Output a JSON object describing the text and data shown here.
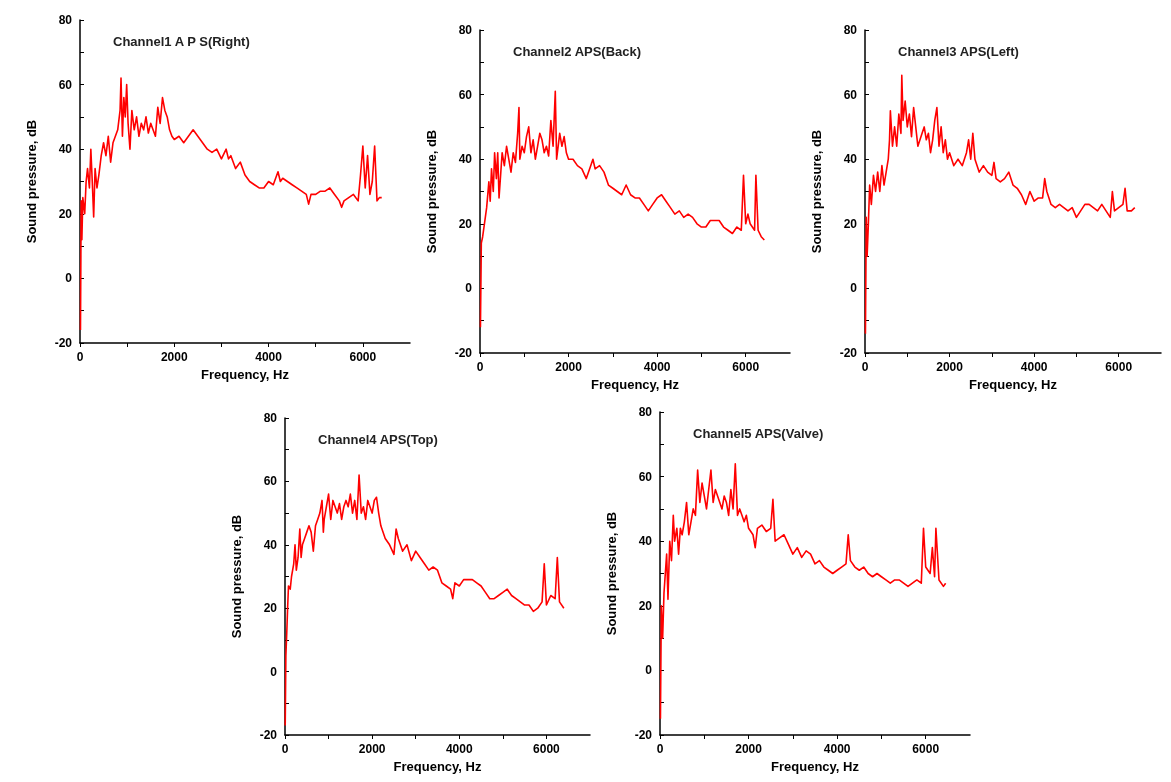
{
  "chart_data": [
    {
      "type": "line",
      "title": "Channel1 A P S(Right)",
      "xlabel": "Frequency, Hz",
      "ylabel": "Sound pressure, dB",
      "color": "#ff0000",
      "grid": false,
      "marker": "none",
      "line_style": "solid",
      "xlim": [
        0,
        7000
      ],
      "xticks": [
        0,
        {
          "value": 1000,
          "label": null
        },
        2000,
        {
          "value": 3000,
          "label": null
        },
        4000,
        {
          "value": 5000,
          "label": null
        },
        6000
      ],
      "ylim": [
        -20,
        80
      ],
      "yticks": [
        -20,
        {
          "value": -10,
          "label": null
        },
        0,
        {
          "value": 10,
          "label": null
        },
        20,
        {
          "value": 30,
          "label": null
        },
        40,
        {
          "value": 50,
          "label": null
        },
        60,
        {
          "value": 70,
          "label": null
        },
        80
      ],
      "x": [
        10,
        25,
        40,
        60,
        100,
        130,
        160,
        200,
        230,
        260,
        290,
        320,
        360,
        400,
        450,
        500,
        550,
        600,
        650,
        700,
        750,
        800,
        850,
        870,
        900,
        930,
        960,
        990,
        1020,
        1060,
        1100,
        1150,
        1200,
        1250,
        1300,
        1350,
        1400,
        1450,
        1500,
        1550,
        1600,
        1650,
        1700,
        1750,
        1800,
        1850,
        1900,
        1950,
        2000,
        2100,
        2200,
        2300,
        2400,
        2500,
        2600,
        2700,
        2800,
        2900,
        3000,
        3100,
        3150,
        3200,
        3300,
        3400,
        3500,
        3600,
        3700,
        3800,
        3900,
        4000,
        4100,
        4200,
        4250,
        4300,
        4400,
        4500,
        4600,
        4700,
        4800,
        4850,
        4900,
        5000,
        5100,
        5200,
        5300,
        5400,
        5500,
        5550,
        5600,
        5700,
        5800,
        5900,
        5950,
        6000,
        6050,
        6100,
        6150,
        6200,
        6250,
        6300,
        6350,
        6400
      ],
      "values": [
        -16,
        24,
        12,
        25,
        20,
        30,
        34,
        28,
        40,
        30,
        19,
        34,
        28,
        32,
        38,
        42,
        38,
        44,
        36,
        42,
        44,
        46,
        52,
        62,
        44,
        56,
        50,
        60,
        48,
        40,
        52,
        46,
        50,
        44,
        48,
        46,
        50,
        45,
        48,
        46,
        44,
        53,
        48,
        56,
        52,
        50,
        46,
        44,
        43,
        44,
        42,
        44,
        46,
        44,
        42,
        40,
        39,
        40,
        37,
        40,
        37,
        38,
        34,
        36,
        32,
        30,
        29,
        28,
        28,
        30,
        29,
        33,
        30,
        31,
        30,
        29,
        28,
        27,
        26,
        23,
        26,
        26,
        27,
        27,
        28,
        26,
        24,
        22,
        24,
        25,
        26,
        24,
        32,
        41,
        28,
        38,
        26,
        30,
        41,
        24,
        25,
        25
      ]
    },
    {
      "type": "line",
      "title": "Channel2 APS(Back)",
      "xlabel": "Frequency, Hz",
      "ylabel": "Sound pressure, dB",
      "color": "#ff0000",
      "grid": false,
      "marker": "none",
      "line_style": "solid",
      "xlim": [
        0,
        7000
      ],
      "xticks": [
        0,
        {
          "value": 1000,
          "label": null
        },
        2000,
        {
          "value": 3000,
          "label": null
        },
        4000,
        {
          "value": 5000,
          "label": null
        },
        6000
      ],
      "ylim": [
        -20,
        80
      ],
      "yticks": [
        -20,
        {
          "value": -10,
          "label": null
        },
        0,
        {
          "value": 10,
          "label": null
        },
        20,
        {
          "value": 30,
          "label": null
        },
        40,
        {
          "value": 50,
          "label": null
        },
        60,
        {
          "value": 70,
          "label": null
        },
        80
      ],
      "x": [
        10,
        30,
        60,
        100,
        150,
        200,
        230,
        260,
        300,
        330,
        370,
        400,
        430,
        470,
        500,
        550,
        600,
        650,
        700,
        750,
        800,
        850,
        880,
        900,
        950,
        1000,
        1050,
        1100,
        1150,
        1200,
        1250,
        1300,
        1350,
        1400,
        1450,
        1500,
        1550,
        1600,
        1650,
        1700,
        1730,
        1800,
        1850,
        1900,
        1950,
        2000,
        2100,
        2200,
        2300,
        2400,
        2500,
        2550,
        2600,
        2700,
        2800,
        2900,
        3000,
        3100,
        3200,
        3300,
        3400,
        3500,
        3600,
        3700,
        3800,
        3900,
        4000,
        4100,
        4200,
        4300,
        4400,
        4500,
        4600,
        4700,
        4800,
        4900,
        5000,
        5100,
        5200,
        5300,
        5400,
        5500,
        5600,
        5700,
        5800,
        5900,
        5950,
        6000,
        6050,
        6100,
        6200,
        6230,
        6280,
        6350,
        6420
      ],
      "values": [
        -12,
        14,
        16,
        20,
        25,
        33,
        27,
        37,
        30,
        42,
        34,
        42,
        28,
        36,
        42,
        38,
        44,
        40,
        36,
        42,
        39,
        48,
        56,
        40,
        44,
        42,
        47,
        50,
        42,
        46,
        40,
        44,
        48,
        46,
        42,
        44,
        41,
        52,
        44,
        61,
        40,
        48,
        44,
        47,
        42,
        40,
        40,
        38,
        37,
        34,
        38,
        40,
        37,
        38,
        36,
        32,
        31,
        30,
        29,
        32,
        29,
        28,
        28,
        26,
        24,
        26,
        28,
        29,
        27,
        25,
        23,
        24,
        22,
        23,
        22,
        20,
        19,
        19,
        21,
        21,
        21,
        19,
        18,
        17,
        19,
        18,
        35,
        20,
        23,
        20,
        18,
        35,
        18,
        16,
        15
      ]
    },
    {
      "type": "line",
      "title": "Channel3 APS(Left)",
      "xlabel": "Frequency, Hz",
      "ylabel": "Sound pressure, dB",
      "color": "#ff0000",
      "grid": false,
      "marker": "none",
      "line_style": "solid",
      "xlim": [
        0,
        7000
      ],
      "xticks": [
        0,
        {
          "value": 1000,
          "label": null
        },
        2000,
        {
          "value": 3000,
          "label": null
        },
        4000,
        {
          "value": 5000,
          "label": null
        },
        6000
      ],
      "ylim": [
        -20,
        80
      ],
      "yticks": [
        -20,
        {
          "value": -10,
          "label": null
        },
        0,
        {
          "value": 10,
          "label": null
        },
        20,
        {
          "value": 30,
          "label": null
        },
        40,
        {
          "value": 50,
          "label": null
        },
        60,
        {
          "value": 70,
          "label": null
        },
        80
      ],
      "x": [
        10,
        30,
        50,
        80,
        110,
        150,
        200,
        250,
        300,
        350,
        400,
        450,
        500,
        550,
        580,
        600,
        650,
        700,
        750,
        800,
        850,
        870,
        900,
        950,
        1000,
        1050,
        1100,
        1150,
        1200,
        1250,
        1300,
        1350,
        1400,
        1450,
        1500,
        1550,
        1600,
        1650,
        1700,
        1750,
        1800,
        1850,
        1900,
        1950,
        2000,
        2100,
        2200,
        2300,
        2400,
        2450,
        2500,
        2550,
        2600,
        2700,
        2800,
        2900,
        3000,
        3050,
        3100,
        3200,
        3300,
        3400,
        3500,
        3600,
        3700,
        3800,
        3900,
        4000,
        4100,
        4200,
        4250,
        4300,
        4400,
        4500,
        4600,
        4700,
        4800,
        4900,
        5000,
        5100,
        5200,
        5300,
        5400,
        5500,
        5600,
        5700,
        5800,
        5850,
        5900,
        6000,
        6100,
        6150,
        6200,
        6300,
        6380
      ],
      "values": [
        -14,
        22,
        10,
        20,
        32,
        26,
        35,
        30,
        36,
        30,
        38,
        32,
        36,
        40,
        46,
        55,
        44,
        50,
        44,
        54,
        48,
        66,
        52,
        58,
        50,
        54,
        47,
        56,
        50,
        44,
        46,
        48,
        50,
        46,
        48,
        42,
        46,
        52,
        56,
        44,
        50,
        42,
        46,
        40,
        42,
        38,
        40,
        38,
        42,
        46,
        40,
        48,
        40,
        36,
        38,
        36,
        35,
        39,
        34,
        33,
        34,
        36,
        32,
        31,
        29,
        26,
        30,
        27,
        28,
        28,
        34,
        30,
        26,
        25,
        26,
        25,
        24,
        25,
        22,
        24,
        26,
        26,
        25,
        24,
        26,
        24,
        22,
        30,
        24,
        25,
        26,
        31,
        24,
        24,
        25
      ]
    },
    {
      "type": "line",
      "title": "Channel4 APS(Top)",
      "xlabel": "Frequency, Hz",
      "ylabel": "Sound pressure, dB",
      "color": "#ff0000",
      "grid": false,
      "marker": "none",
      "line_style": "solid",
      "xlim": [
        0,
        7000
      ],
      "xticks": [
        0,
        {
          "value": 1000,
          "label": null
        },
        2000,
        {
          "value": 3000,
          "label": null
        },
        4000,
        {
          "value": 5000,
          "label": null
        },
        6000
      ],
      "ylim": [
        -20,
        80
      ],
      "yticks": [
        -20,
        {
          "value": -10,
          "label": null
        },
        0,
        {
          "value": 10,
          "label": null
        },
        20,
        {
          "value": 30,
          "label": null
        },
        40,
        {
          "value": 50,
          "label": null
        },
        60,
        {
          "value": 70,
          "label": null
        },
        80
      ],
      "x": [
        5,
        20,
        40,
        60,
        80,
        120,
        150,
        200,
        230,
        260,
        300,
        340,
        370,
        400,
        450,
        500,
        550,
        600,
        650,
        700,
        750,
        800,
        850,
        880,
        900,
        950,
        1000,
        1050,
        1100,
        1150,
        1200,
        1250,
        1300,
        1350,
        1400,
        1450,
        1500,
        1550,
        1600,
        1650,
        1700,
        1750,
        1800,
        1850,
        1900,
        1950,
        2000,
        2050,
        2100,
        2150,
        2200,
        2300,
        2400,
        2500,
        2550,
        2600,
        2700,
        2800,
        2900,
        3000,
        3100,
        3200,
        3300,
        3400,
        3500,
        3600,
        3700,
        3800,
        3850,
        3900,
        4000,
        4100,
        4200,
        4300,
        4400,
        4500,
        4600,
        4700,
        4800,
        4900,
        5000,
        5100,
        5200,
        5300,
        5400,
        5500,
        5600,
        5700,
        5800,
        5900,
        5950,
        6000,
        6100,
        6200,
        6250,
        6300,
        6400
      ],
      "values": [
        -17,
        5,
        12,
        20,
        27,
        26,
        30,
        34,
        40,
        32,
        36,
        45,
        36,
        40,
        42,
        44,
        46,
        44,
        38,
        46,
        48,
        50,
        54,
        44,
        48,
        52,
        56,
        48,
        54,
        52,
        50,
        53,
        48,
        52,
        54,
        52,
        56,
        50,
        54,
        48,
        62,
        50,
        52,
        48,
        54,
        52,
        50,
        54,
        55,
        50,
        46,
        42,
        40,
        37,
        45,
        42,
        38,
        40,
        35,
        38,
        36,
        34,
        32,
        33,
        32,
        28,
        27,
        26,
        23,
        28,
        27,
        29,
        29,
        29,
        28,
        27,
        25,
        23,
        23,
        24,
        25,
        26,
        24,
        23,
        22,
        21,
        21,
        19,
        20,
        22,
        34,
        21,
        24,
        23,
        36,
        22,
        20
      ]
    },
    {
      "type": "line",
      "title": "Channel5 APS(Valve)",
      "xlabel": "Frequency, Hz",
      "ylabel": "Sound pressure, dB",
      "color": "#ff0000",
      "grid": false,
      "marker": "none",
      "line_style": "solid",
      "xlim": [
        0,
        7000
      ],
      "xticks": [
        0,
        {
          "value": 1000,
          "label": null
        },
        2000,
        {
          "value": 3000,
          "label": null
        },
        4000,
        {
          "value": 5000,
          "label": null
        },
        6000
      ],
      "ylim": [
        -20,
        80
      ],
      "yticks": [
        -20,
        {
          "value": -10,
          "label": null
        },
        0,
        {
          "value": 10,
          "label": null
        },
        20,
        {
          "value": 30,
          "label": null
        },
        40,
        {
          "value": 50,
          "label": null
        },
        60,
        {
          "value": 70,
          "label": null
        },
        80
      ],
      "x": [
        10,
        30,
        60,
        90,
        120,
        150,
        180,
        220,
        260,
        300,
        330,
        380,
        420,
        460,
        500,
        550,
        600,
        650,
        700,
        750,
        800,
        850,
        900,
        950,
        1000,
        1050,
        1100,
        1150,
        1200,
        1250,
        1300,
        1350,
        1400,
        1450,
        1500,
        1550,
        1600,
        1650,
        1700,
        1750,
        1800,
        1850,
        1900,
        1950,
        2000,
        2100,
        2150,
        2200,
        2300,
        2400,
        2500,
        2550,
        2600,
        2700,
        2800,
        2900,
        3000,
        3100,
        3200,
        3300,
        3400,
        3500,
        3600,
        3700,
        3800,
        3900,
        4000,
        4100,
        4200,
        4250,
        4300,
        4400,
        4500,
        4600,
        4700,
        4800,
        4900,
        5000,
        5100,
        5200,
        5300,
        5400,
        5500,
        5600,
        5700,
        5800,
        5900,
        5950,
        6000,
        6100,
        6150,
        6200,
        6230,
        6300,
        6400,
        6450
      ],
      "values": [
        -15,
        20,
        10,
        24,
        30,
        36,
        22,
        40,
        34,
        48,
        40,
        44,
        36,
        44,
        42,
        46,
        52,
        42,
        46,
        50,
        48,
        62,
        52,
        58,
        54,
        50,
        56,
        62,
        52,
        56,
        54,
        52,
        50,
        54,
        52,
        48,
        56,
        50,
        64,
        48,
        50,
        48,
        46,
        48,
        44,
        42,
        38,
        44,
        45,
        43,
        44,
        53,
        40,
        41,
        42,
        39,
        36,
        38,
        35,
        37,
        36,
        33,
        34,
        32,
        31,
        30,
        31,
        32,
        33,
        42,
        34,
        32,
        31,
        32,
        30,
        29,
        30,
        29,
        28,
        27,
        28,
        28,
        27,
        26,
        27,
        28,
        27,
        44,
        32,
        30,
        38,
        29,
        44,
        28,
        26,
        27
      ]
    }
  ]
}
